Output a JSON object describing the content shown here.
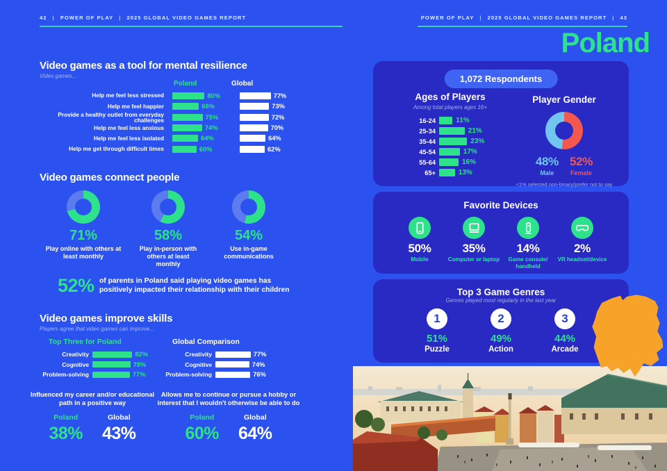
{
  "meta": {
    "country": "Poland"
  },
  "colors": {
    "page_bg": "#2b52ef",
    "card_bg": "#2929c3",
    "accent_green": "#2ee28b",
    "donut_rest_blue": "#5b7bef",
    "male_blue": "#72c5f0",
    "female_red": "#f4574d",
    "map_orange": "#f7a329",
    "rule_teal": "#3ed2b9",
    "pill_blue": "#3f63f2"
  },
  "header": {
    "separator": "|",
    "left": {
      "page": "42",
      "brand": "POWER OF PLAY",
      "report": "2025 GLOBAL VIDEO GAMES REPORT"
    },
    "right": {
      "brand": "POWER OF PLAY",
      "report": "2025 GLOBAL VIDEO GAMES REPORT",
      "page": "43"
    }
  },
  "mental_resilience": {
    "title": "Video games as a tool for mental resilience",
    "subtitle": "Video games...",
    "col_poland": "Poland",
    "col_global": "Global",
    "rows": [
      {
        "label": "Help me feel less stressed",
        "poland": 80,
        "global": 77
      },
      {
        "label": "Help me feel happier",
        "poland": 66,
        "global": 73
      },
      {
        "label": "Provide a healthy outlet from everyday challenges",
        "poland": 75,
        "global": 72
      },
      {
        "label": "Help me feel less anxious",
        "poland": 74,
        "global": 70
      },
      {
        "label": "Help me feel less isolated",
        "poland": 64,
        "global": 64
      },
      {
        "label": "Help me get through difficult times",
        "poland": 60,
        "global": 62
      }
    ]
  },
  "connect": {
    "title": "Video games connect people",
    "donuts": [
      {
        "pct": 71,
        "caption": "Play online with others at least monthly"
      },
      {
        "pct": 58,
        "caption": "Play in-person with others at least monthly"
      },
      {
        "pct": 54,
        "caption": "Use in-game communications"
      }
    ]
  },
  "parents": {
    "pct": 52,
    "text": "of parents in Poland said playing video games has positively impacted their relationship with their children"
  },
  "skills": {
    "title": "Video games improve skills",
    "subtitle": "Players agree that video games can improve...",
    "poland_header": "Top Three for Poland",
    "global_header": "Global Comparison",
    "poland_rows": [
      {
        "label": "Creativity",
        "value": 82
      },
      {
        "label": "Cognitive",
        "value": 78
      },
      {
        "label": "Problem-solving",
        "value": 77
      }
    ],
    "global_rows": [
      {
        "label": "Creativity",
        "value": 77
      },
      {
        "label": "Cognitive",
        "value": 74
      },
      {
        "label": "Problem-solving",
        "value": 76
      }
    ],
    "stats": [
      {
        "caption": "Influenced my career and/or educational path in a positive way",
        "poland_label": "Poland",
        "global_label": "Global",
        "poland": 38,
        "global": 43
      },
      {
        "caption": "Allows me to continue or pursue a hobby or interest that I wouldn't otherwise be able to do",
        "poland_label": "Poland",
        "global_label": "Global",
        "poland": 60,
        "global": 64
      }
    ]
  },
  "demographics": {
    "respondents": "1,072 Respondents",
    "ages": {
      "title": "Ages of Players",
      "subtitle": "Among total players ages 16+",
      "rows": [
        {
          "label": "16-24",
          "pct": 11
        },
        {
          "label": "25-34",
          "pct": 21
        },
        {
          "label": "35-44",
          "pct": 23
        },
        {
          "label": "45-54",
          "pct": 17
        },
        {
          "label": "55-64",
          "pct": 16
        },
        {
          "label": "65+",
          "pct": 13
        }
      ]
    },
    "gender": {
      "title": "Player Gender",
      "male": 48,
      "male_label": "Male",
      "female": 52,
      "female_label": "Female",
      "footnote": "<1% selected non-binary/prefer not to say"
    }
  },
  "devices": {
    "title": "Favorite Devices",
    "items": [
      {
        "icon": "mobile-icon",
        "pct": 50,
        "label": "Mobile"
      },
      {
        "icon": "laptop-icon",
        "pct": 35,
        "label": "Computer or laptop"
      },
      {
        "icon": "game-console-icon",
        "pct": 14,
        "label": "Game console/ handheld"
      },
      {
        "icon": "vr-headset-icon",
        "pct": 2,
        "label": "VR headset/device"
      }
    ]
  },
  "genres": {
    "title": "Top 3 Game Genres",
    "subtitle": "Genres played most regularly in the last year",
    "items": [
      {
        "rank": "1",
        "pct": 51,
        "label": "Puzzle"
      },
      {
        "rank": "2",
        "pct": 49,
        "label": "Action"
      },
      {
        "rank": "3",
        "pct": 44,
        "label": "Arcade"
      }
    ]
  },
  "chart_data": [
    {
      "type": "bar",
      "title": "Video games as a tool for mental resilience",
      "unit": "%",
      "categories": [
        "Help me feel less stressed",
        "Help me feel happier",
        "Provide a healthy outlet from everyday challenges",
        "Help me feel less anxious",
        "Help me feel less isolated",
        "Help me get through difficult times"
      ],
      "series": [
        {
          "name": "Poland",
          "values": [
            80,
            66,
            75,
            74,
            64,
            60
          ]
        },
        {
          "name": "Global",
          "values": [
            77,
            73,
            72,
            70,
            64,
            62
          ]
        }
      ]
    },
    {
      "type": "pie",
      "title": "Video games connect people",
      "unit": "%",
      "slices": [
        {
          "label": "Play online with others at least monthly",
          "value": 71
        },
        {
          "label": "Play in-person with others at least monthly",
          "value": 58
        },
        {
          "label": "Use in-game communications",
          "value": 54
        }
      ]
    },
    {
      "type": "bar",
      "title": "Video games improve skills",
      "unit": "%",
      "categories": [
        "Creativity",
        "Cognitive",
        "Problem-solving"
      ],
      "series": [
        {
          "name": "Poland",
          "values": [
            82,
            78,
            77
          ]
        },
        {
          "name": "Global",
          "values": [
            77,
            74,
            76
          ]
        }
      ]
    },
    {
      "type": "bar",
      "title": "Ages of Players",
      "unit": "%",
      "categories": [
        "16-24",
        "25-34",
        "35-44",
        "45-54",
        "55-64",
        "65+"
      ],
      "values": [
        11,
        21,
        23,
        17,
        16,
        13
      ]
    },
    {
      "type": "pie",
      "title": "Player Gender",
      "unit": "%",
      "slices": [
        {
          "label": "Male",
          "value": 48
        },
        {
          "label": "Female",
          "value": 52
        }
      ]
    },
    {
      "type": "bar",
      "title": "Favorite Devices",
      "unit": "%",
      "categories": [
        "Mobile",
        "Computer or laptop",
        "Game console/handheld",
        "VR headset/device"
      ],
      "values": [
        50,
        35,
        14,
        2
      ]
    },
    {
      "type": "bar",
      "title": "Top 3 Game Genres",
      "unit": "%",
      "categories": [
        "Puzzle",
        "Action",
        "Arcade"
      ],
      "values": [
        51,
        49,
        44
      ]
    }
  ]
}
